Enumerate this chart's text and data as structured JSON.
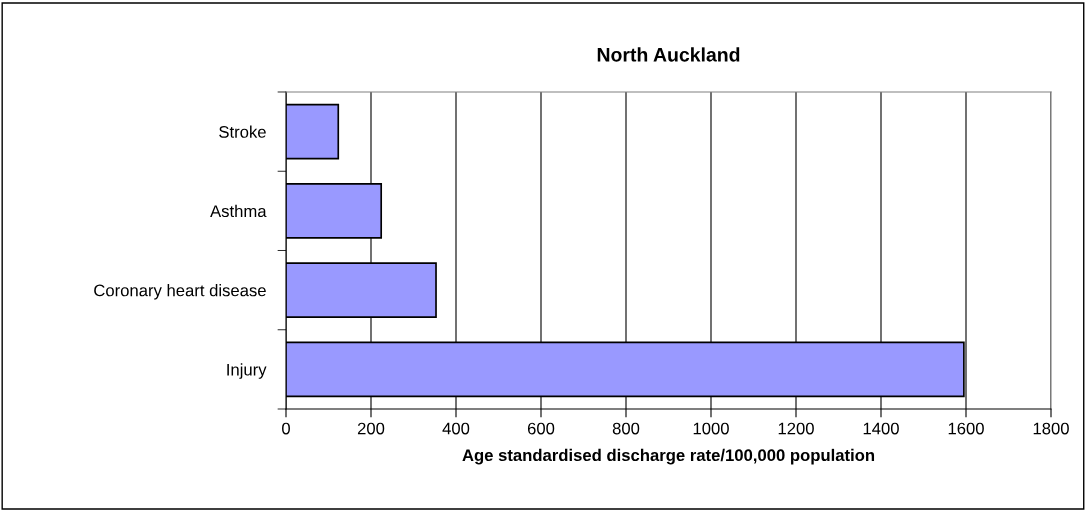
{
  "chart_data": {
    "type": "bar",
    "orientation": "horizontal",
    "title": "North Auckland",
    "xlabel": "Age standardised discharge rate/100,000 population",
    "categories": [
      "Stroke",
      "Asthma",
      "Coronary heart disease",
      "Injury"
    ],
    "values": [
      123,
      224,
      353,
      1595
    ],
    "color": "#9999ff",
    "xlim": [
      0,
      1800
    ],
    "xticks": [
      0,
      200,
      400,
      600,
      800,
      1000,
      1200,
      1400,
      1600,
      1800
    ],
    "grid": "x",
    "legend": false
  }
}
